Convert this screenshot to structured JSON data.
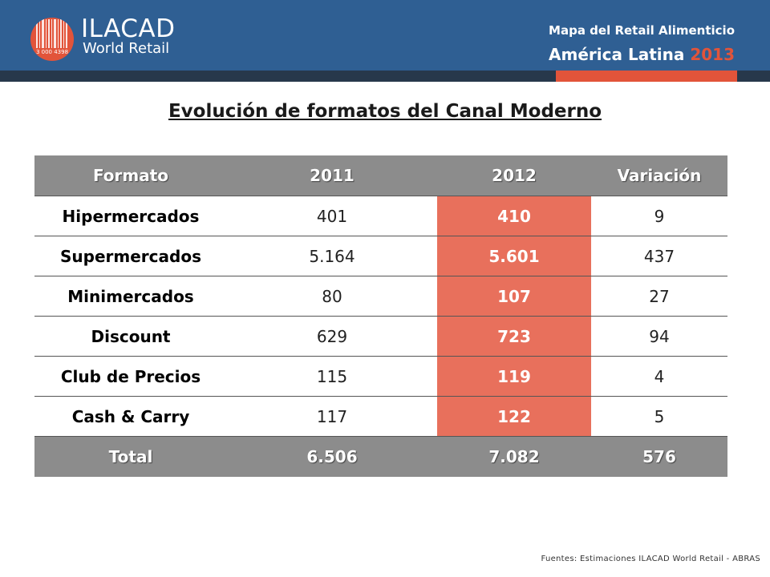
{
  "header": {
    "logo_name": "ILACAD",
    "logo_sub": "World Retail",
    "logo_barcode_text": "3 000 4398",
    "kicker": "Mapa del Retail Alimenticio",
    "region": "América Latina",
    "year": "2013",
    "colors": {
      "bar": "#2f5f93",
      "strip": "#27384b",
      "accent": "#e2543a"
    }
  },
  "title": "Evolución de formatos del Canal Moderno",
  "table": {
    "columns": [
      "Formato",
      "2011",
      "2012",
      "Variación"
    ],
    "rows": [
      {
        "formato": "Hipermercados",
        "y2011": "401",
        "y2012": "410",
        "variacion": "9"
      },
      {
        "formato": "Supermercados",
        "y2011": "5.164",
        "y2012": "5.601",
        "variacion": "437"
      },
      {
        "formato": "Minimercados",
        "y2011": "80",
        "y2012": "107",
        "variacion": "27"
      },
      {
        "formato": "Discount",
        "y2011": "629",
        "y2012": "723",
        "variacion": "94"
      },
      {
        "formato": "Club de Precios",
        "y2011": "115",
        "y2012": "119",
        "variacion": "4"
      },
      {
        "formato": "Cash & Carry",
        "y2011": "117",
        "y2012": "122",
        "variacion": "5"
      }
    ],
    "total": {
      "label": "Total",
      "y2011": "6.506",
      "y2012": "7.082",
      "variacion": "576"
    },
    "colors": {
      "header_bg": "#8c8c8c",
      "highlight": "#e8705c"
    }
  },
  "source": "Fuentes: Estimaciones ILACAD World Retail - ABRAS"
}
